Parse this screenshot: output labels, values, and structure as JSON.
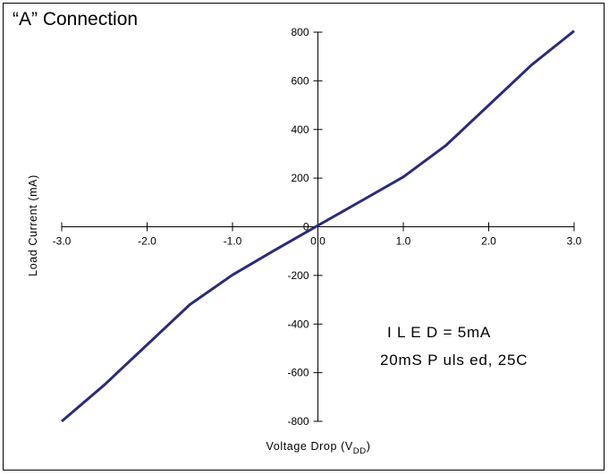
{
  "chart_data": {
    "type": "line",
    "title": "“A” Connection",
    "xlabel": "Voltage Drop (V",
    "xlabel_sub": "DD",
    "xlabel_end": ")",
    "ylabel": "Load Current (mA)",
    "xlim": [
      -3.0,
      3.0
    ],
    "ylim": [
      -800,
      800
    ],
    "x_ticks": [
      -3.0,
      -2.0,
      -1.0,
      0.0,
      1.0,
      2.0,
      3.0
    ],
    "x_tick_labels": [
      "-3.0",
      "-2.0",
      "-1.0",
      "0.0",
      "1.0",
      "2.0",
      "3.0"
    ],
    "y_ticks": [
      800,
      600,
      400,
      200,
      0,
      -200,
      -400,
      -600,
      -800
    ],
    "y_tick_labels": [
      "800",
      "600",
      "400",
      "200",
      "0",
      "-200",
      "-400",
      "-600",
      "-800"
    ],
    "line_color": "#2b2a7c",
    "series": [
      {
        "x": [
          -3.0,
          -2.5,
          -2.0,
          -1.5,
          -1.0,
          -0.5,
          0.0,
          0.5,
          1.0,
          1.5,
          2.0,
          2.5,
          3.0
        ],
        "values": [
          -800,
          -650,
          -485,
          -320,
          -198,
          -95,
          5,
          105,
          205,
          335,
          500,
          665,
          805
        ]
      }
    ],
    "annotations": [
      "I L E D  =  5mA",
      "20mS   P uls ed,  25C"
    ],
    "grid": false
  }
}
